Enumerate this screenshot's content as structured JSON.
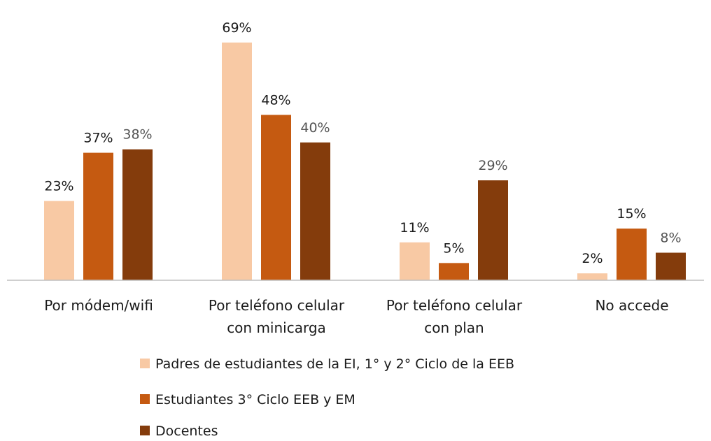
{
  "chart_data": {
    "type": "bar",
    "categories": [
      [
        "Por módem/wifi"
      ],
      [
        "Por teléfono celular",
        "con minicarga"
      ],
      [
        "Por teléfono celular",
        "con plan"
      ],
      [
        "No accede"
      ]
    ],
    "series": [
      {
        "name": "Padres de estudiantes de la EI,  1° y 2° Ciclo de la EEB",
        "values": [
          23,
          69,
          11,
          2
        ],
        "labels": [
          "23%",
          "69%",
          "11%",
          "2%"
        ],
        "color": "#f8c9a4",
        "label_color": "#1a1a1a"
      },
      {
        "name": "Estudiantes 3° Ciclo EEB y EM",
        "values": [
          37,
          48,
          5,
          15
        ],
        "labels": [
          "37%",
          "48%",
          "5%",
          "15%"
        ],
        "color": "#c55a11",
        "label_color": "#1a1a1a"
      },
      {
        "name": "Docentes",
        "values": [
          38,
          40,
          29,
          8
        ],
        "labels": [
          "38%",
          "40%",
          "29%",
          "8%"
        ],
        "color": "#843c0c",
        "label_color": "#555555"
      }
    ],
    "y_unit": "%",
    "ylim": [
      0,
      69
    ],
    "grid": false,
    "legend_position": "bottom"
  }
}
